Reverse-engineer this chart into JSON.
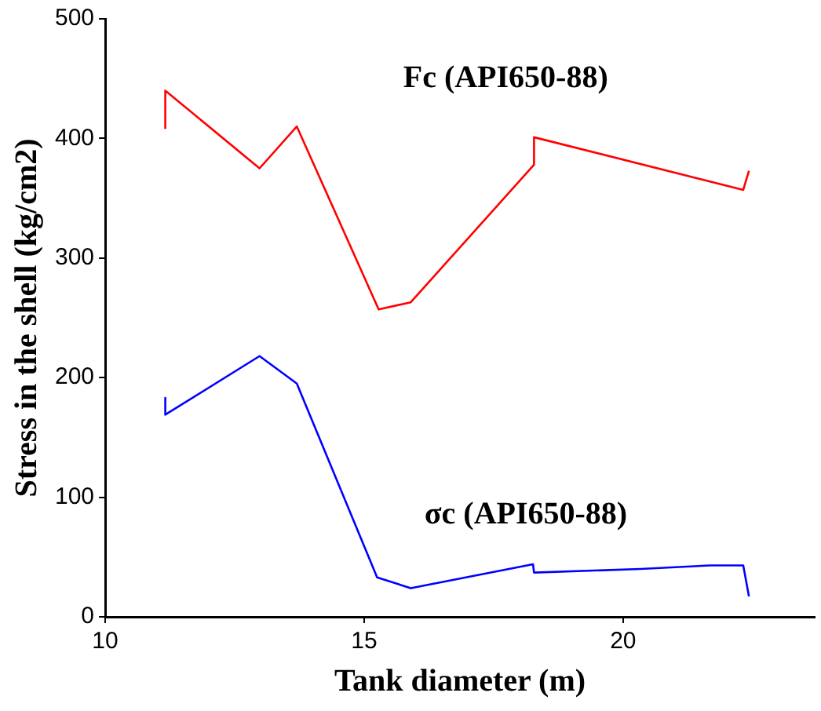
{
  "chart_data": {
    "type": "line",
    "xlabel": "Tank diameter (m)",
    "ylabel": "Stress in the shell (kg/cm2)",
    "xlim": [
      10,
      23.7
    ],
    "xticks": [
      10,
      15,
      20
    ],
    "ylim": [
      0,
      500
    ],
    "yticks": [
      0,
      100,
      200,
      300,
      400,
      500
    ],
    "grid": false,
    "legend": false,
    "marker": "none",
    "series": [
      {
        "name": "Fc (API650-88)",
        "color": "#ff0000",
        "x": [
          11.16,
          11.16,
          12.98,
          13.7,
          15.28,
          15.9,
          18.28,
          18.28,
          22.32,
          22.43
        ],
        "values": [
          408,
          440,
          375,
          410,
          257,
          263,
          378,
          401,
          357,
          373
        ]
      },
      {
        "name": "σc (API650-88)",
        "color": "#0000ff",
        "x": [
          11.16,
          11.16,
          12.98,
          13.7,
          15.25,
          15.9,
          18.26,
          18.28,
          20.34,
          21.68,
          22.32,
          22.43
        ],
        "values": [
          183,
          169,
          218,
          195,
          33,
          24,
          44,
          37,
          40,
          43,
          43,
          17
        ]
      }
    ]
  }
}
